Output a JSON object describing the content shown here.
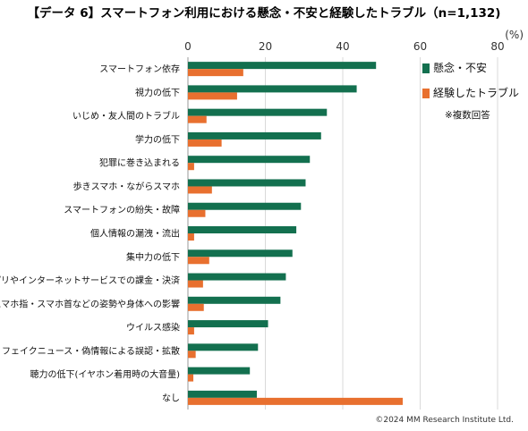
{
  "chart_data": {
    "type": "bar",
    "orientation": "horizontal",
    "title": "【データ 6】スマートフォン利用における懸念・不安と経験したトラブル（n=1,132)",
    "unit": "(%)",
    "xlim": [
      0,
      80
    ],
    "x_ticks": [
      "0",
      "20",
      "40",
      "60",
      "80"
    ],
    "grid": true,
    "legend_position": "right",
    "categories": [
      "スマートフォン依存",
      "視力の低下",
      "いじめ・友人間のトラブル",
      "学力の低下",
      "犯罪に巻き込まれる",
      "歩きスマホ・ながらスマホ",
      "スマートフォンの紛失・故障",
      "個人情報の漏洩・流出",
      "集中力の低下",
      "アプリやインターネットサービスでの課金・決済",
      "スマホ指・スマホ首などの姿勢や身体への影響",
      "ウイルス感染",
      "フェイクニュース・偽情報による誤認・拡散",
      "聴力の低下(イヤホン着用時の大音量)",
      "なし"
    ],
    "series": [
      {
        "name": "懸念・不安",
        "color": "#13704f",
        "values": [
          48.6,
          43.6,
          35.9,
          34.4,
          31.5,
          30.4,
          29.2,
          28.0,
          27.0,
          25.3,
          23.9,
          20.7,
          18.1,
          16.0,
          17.8
        ]
      },
      {
        "name": "経験したトラブル",
        "color": "#e8702f",
        "values": [
          14.3,
          12.7,
          4.8,
          8.7,
          1.6,
          6.2,
          4.5,
          1.6,
          5.5,
          3.9,
          4.1,
          1.6,
          2.0,
          1.4,
          55.5
        ]
      }
    ],
    "note": "※複数回答",
    "credit": "©2024  MM Research Institute Ltd."
  }
}
